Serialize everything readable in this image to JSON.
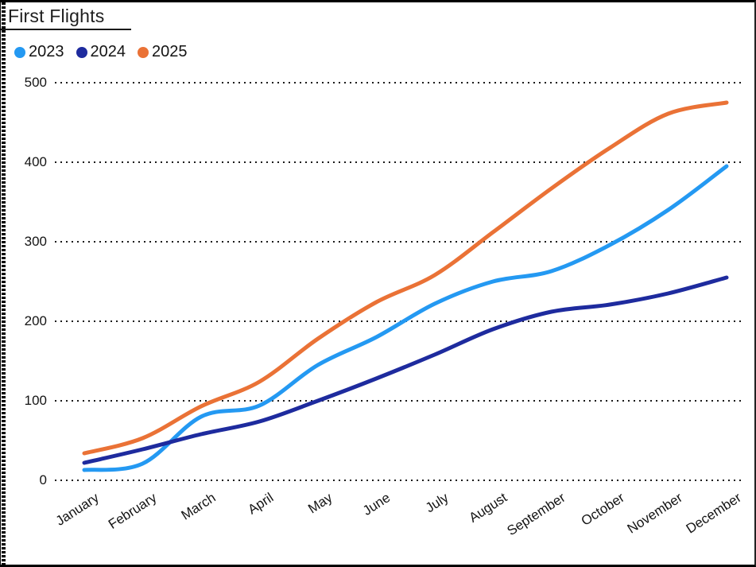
{
  "window": {
    "title": "First Flights"
  },
  "chart_data": {
    "type": "line",
    "title": "First Flights",
    "categories": [
      "January",
      "February",
      "March",
      "April",
      "May",
      "June",
      "July",
      "August",
      "September",
      "October",
      "November",
      "December"
    ],
    "series": [
      {
        "name": "2023",
        "color": "#2499F2",
        "values": [
          13,
          21,
          80,
          94,
          145,
          180,
          222,
          250,
          263,
          296,
          340,
          395
        ]
      },
      {
        "name": "2024",
        "color": "#1E2B9E",
        "values": [
          22,
          39,
          58,
          74,
          100,
          128,
          158,
          190,
          212,
          221,
          235,
          255
        ]
      },
      {
        "name": "2025",
        "color": "#EA7236",
        "values": [
          34,
          53,
          93,
          124,
          178,
          224,
          258,
          312,
          367,
          418,
          461,
          475
        ]
      }
    ],
    "yticks": [
      0,
      100,
      200,
      300,
      400,
      500
    ],
    "ylim": [
      0,
      500
    ],
    "xlabel": "",
    "ylabel": "",
    "grid": "horizontal-dotted",
    "legend_position": "top-left"
  },
  "colors": {
    "background": "#FFFFFF",
    "border": "#000000",
    "grid_dots": "#1A1A1A",
    "text": "#141414"
  }
}
